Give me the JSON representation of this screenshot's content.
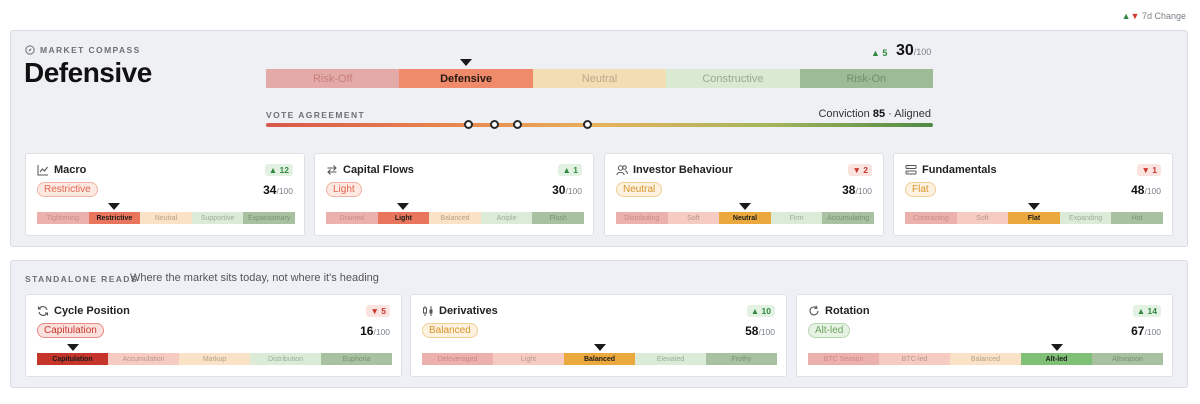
{
  "legend": {
    "up": "▲",
    "down": "▼",
    "label": "7d Change"
  },
  "compass": {
    "label": "MARKET COMPASS",
    "title": "Defensive",
    "change": "▲ 5",
    "score": "30",
    "score_den": "/100",
    "regimes": [
      "Risk-Off",
      "Defensive",
      "Neutral",
      "Constructive",
      "Risk-On"
    ],
    "active_index": 1,
    "vote_label": "VOTE AGREEMENT",
    "conviction_label": "Conviction",
    "conviction_value": "85",
    "conviction_sep": "·",
    "conviction_status": "Aligned",
    "vote_positions": [
      0.303,
      0.342,
      0.377,
      0.482
    ]
  },
  "cards": [
    {
      "title": "Macro",
      "icon": "line-chart-icon",
      "change": "▲ 12",
      "dir": "up",
      "badge": "Restrictive",
      "score": "34",
      "den": "/100",
      "segments": [
        "Tightening",
        "Restrictive",
        "Neutral",
        "Supportive",
        "Expansionary"
      ],
      "active": 1
    },
    {
      "title": "Capital Flows",
      "icon": "swap-arrows-icon",
      "change": "▲ 1",
      "dir": "up",
      "badge": "Light",
      "score": "30",
      "den": "/100",
      "segments": [
        "Drained",
        "Light",
        "Balanced",
        "Ample",
        "Flush"
      ],
      "active": 1
    },
    {
      "title": "Investor Behaviour",
      "icon": "users-icon",
      "change": "▼ 2",
      "dir": "dn",
      "badge": "Neutral",
      "score": "38",
      "den": "/100",
      "segments": [
        "Distributing",
        "Soft",
        "Neutral",
        "Firm",
        "Accumulating"
      ],
      "active": 2
    },
    {
      "title": "Fundamentals",
      "icon": "layers-icon",
      "change": "▼ 1",
      "dir": "dn",
      "badge": "Flat",
      "score": "48",
      "den": "/100",
      "segments": [
        "Contracting",
        "Soft",
        "Flat",
        "Expanding",
        "Hot"
      ],
      "active": 2
    }
  ],
  "standalone": {
    "label": "STANDALONE READS",
    "subtitle": "Where the market sits today, not where it's heading",
    "cards": [
      {
        "title": "Cycle Position",
        "icon": "cycle-icon",
        "change": "▼ 5",
        "dir": "dn",
        "badge": "Capitulation",
        "score": "16",
        "den": "/100",
        "segments": [
          "Capitulation",
          "Accumulation",
          "Markup",
          "Distribution",
          "Euphoria"
        ],
        "active": 0
      },
      {
        "title": "Derivatives",
        "icon": "candlestick-icon",
        "change": "▲ 10",
        "dir": "up",
        "badge": "Balanced",
        "score": "58",
        "den": "/100",
        "segments": [
          "Deleveraged",
          "Light",
          "Balanced",
          "Elevated",
          "Frothy"
        ],
        "active": 2
      },
      {
        "title": "Rotation",
        "icon": "rotate-icon",
        "change": "▲ 14",
        "dir": "up",
        "badge": "Alt-led",
        "score": "67",
        "den": "/100",
        "segments": [
          "BTC Season",
          "BTC-led",
          "Balanced",
          "Alt-led",
          "Altseason"
        ],
        "active": 3
      }
    ]
  },
  "colors": {
    "regime_base": [
      "#e3aaa8",
      "#ef8a6b",
      "#f3ddb4",
      "#d9e9d2",
      "#9dbb95"
    ],
    "regime_text": [
      "#c97f7c",
      "#2a1a14",
      "#b8a98a",
      "#97aa93",
      "#6f8f68"
    ],
    "seg_base": [
      "#ecb1ad",
      "#f6cbc2",
      "#f9e2c6",
      "#dcebd7",
      "#a8c1a0"
    ],
    "seg_text": [
      "#c98a86",
      "#b9968f",
      "#b5a28a",
      "#9bac97",
      "#789470"
    ]
  }
}
